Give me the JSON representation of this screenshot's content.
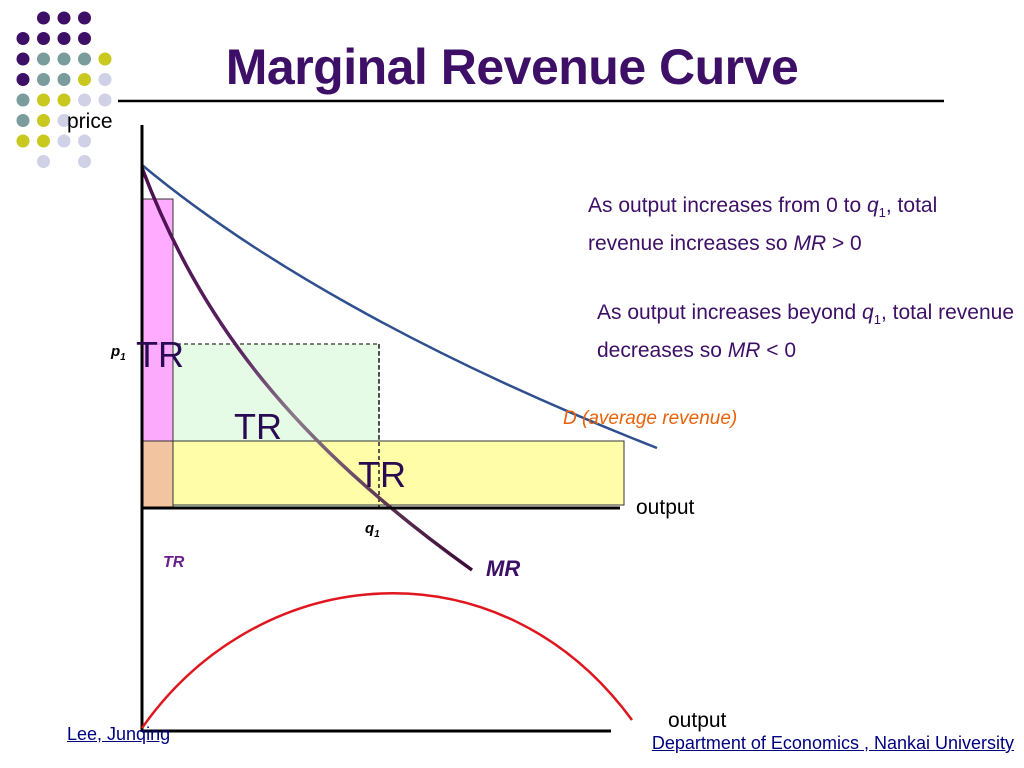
{
  "slide": {
    "title": "Marginal Revenue Curve",
    "footer_left": "Lee, Junqing",
    "footer_right": "Department of  Economics , Nankai University"
  },
  "colors": {
    "title": "#3d0f66",
    "demand_curve": "#2f4f8f",
    "mr_curve": "#4a0f4f",
    "tr_curve": "#e0161e",
    "demand_label": "#e8620a",
    "tr_rect_pink": "#ff9cff",
    "tr_rect_green": "#e6fbe6",
    "tr_rect_yellow": "#fffda8",
    "dot_purple": "#3d0f66",
    "dot_teal": "#7a9c9c",
    "dot_yellow": "#c8c81e",
    "dot_lavender": "#d0d0e6"
  },
  "upper_panel": {
    "y_axis_label": "price",
    "x_axis_label": "output",
    "p1_label": "p",
    "p1_subscript": "1",
    "q1_label": "q",
    "q1_subscript": "1",
    "tr_rect_labels": [
      "TR",
      "TR",
      "TR"
    ],
    "demand_label": "D (average revenue)",
    "mr_label": "MR"
  },
  "lower_panel": {
    "y_axis_label": "TR",
    "x_axis_label": "output"
  },
  "notes": [
    {
      "prefix": "As output increases from 0 to ",
      "var": "q",
      "sub": "1",
      "mid": ", total revenue increases so ",
      "var2": "MR",
      "suffix": " > 0"
    },
    {
      "prefix": "As output increases beyond ",
      "var": "q",
      "sub": "1",
      "mid": ", total revenue decreases so ",
      "var2": "MR",
      "suffix": " < 0"
    }
  ],
  "corner_dots": [
    {
      "color": "purple",
      "row": 0,
      "col": 1
    },
    {
      "color": "purple",
      "row": 0,
      "col": 2
    },
    {
      "color": "purple",
      "row": 0,
      "col": 3
    },
    {
      "color": "purple",
      "row": 1,
      "col": 0
    },
    {
      "color": "purple",
      "row": 1,
      "col": 1
    },
    {
      "color": "purple",
      "row": 1,
      "col": 2
    },
    {
      "color": "purple",
      "row": 1,
      "col": 3
    },
    {
      "color": "purple",
      "row": 2,
      "col": 0
    },
    {
      "color": "teal",
      "row": 2,
      "col": 1
    },
    {
      "color": "teal",
      "row": 2,
      "col": 2
    },
    {
      "color": "teal",
      "row": 2,
      "col": 3
    },
    {
      "color": "yellow",
      "row": 2,
      "col": 4
    },
    {
      "color": "purple",
      "row": 3,
      "col": 0
    },
    {
      "color": "teal",
      "row": 3,
      "col": 1
    },
    {
      "color": "teal",
      "row": 3,
      "col": 2
    },
    {
      "color": "yellow",
      "row": 3,
      "col": 3
    },
    {
      "color": "lavender",
      "row": 3,
      "col": 4
    },
    {
      "color": "teal",
      "row": 4,
      "col": 0
    },
    {
      "color": "yellow",
      "row": 4,
      "col": 1
    },
    {
      "color": "yellow",
      "row": 4,
      "col": 2
    },
    {
      "color": "lavender",
      "row": 4,
      "col": 3
    },
    {
      "color": "lavender",
      "row": 4,
      "col": 4
    },
    {
      "color": "teal",
      "row": 5,
      "col": 0
    },
    {
      "color": "yellow",
      "row": 5,
      "col": 1
    },
    {
      "color": "lavender",
      "row": 5,
      "col": 2
    },
    {
      "color": "yellow",
      "row": 6,
      "col": 0
    },
    {
      "color": "yellow",
      "row": 6,
      "col": 1
    },
    {
      "color": "lavender",
      "row": 6,
      "col": 2
    },
    {
      "color": "lavender",
      "row": 6,
      "col": 3
    },
    {
      "color": "lavender",
      "row": 7,
      "col": 1
    },
    {
      "color": "lavender",
      "row": 7,
      "col": 3
    }
  ]
}
